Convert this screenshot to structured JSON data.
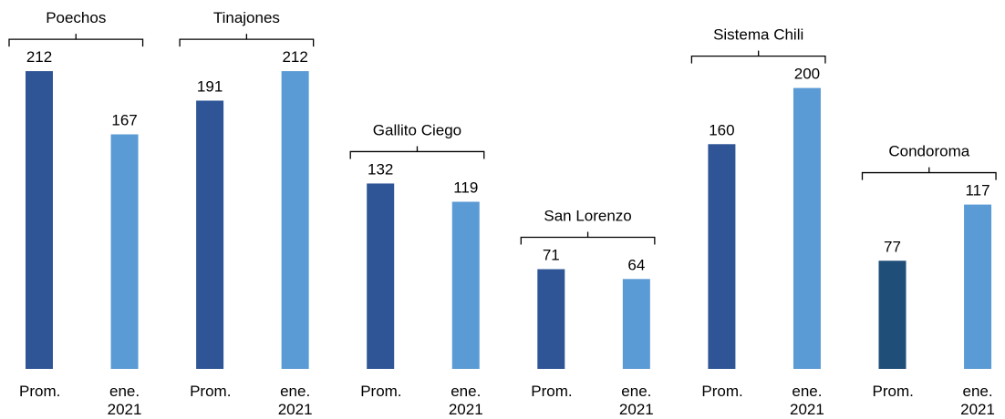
{
  "chart_data": {
    "type": "bar",
    "groups": [
      "Poechos",
      "Tinajones",
      "Gallito Ciego",
      "San Lorenzo",
      "Sistema Chili",
      "Condoroma"
    ],
    "categories": [
      "Prom.",
      "ene. 2021",
      "Prom.",
      "ene. 2021",
      "Prom.",
      "ene. 2021",
      "Prom.",
      "ene. 2021",
      "Prom.",
      "ene. 2021",
      "Prom.",
      "ene. 2021"
    ],
    "values": [
      212,
      167,
      191,
      212,
      132,
      119,
      71,
      64,
      160,
      200,
      77,
      117
    ],
    "colors": [
      "#2f5597",
      "#5b9bd5",
      "#2f5597",
      "#5b9bd5",
      "#2f5597",
      "#5b9bd5",
      "#2f5597",
      "#5b9bd5",
      "#2f5597",
      "#5b9bd5",
      "#1f4e79",
      "#5b9bd5"
    ]
  }
}
